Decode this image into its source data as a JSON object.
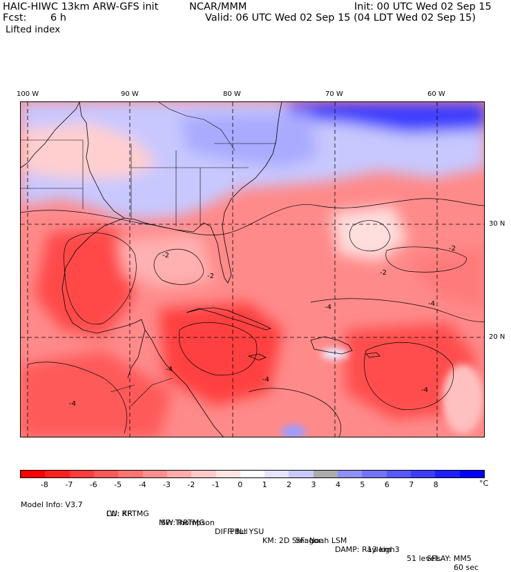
{
  "header": {
    "model": "HAIC-HIWC 13km ARW-GFS init",
    "org": "NCAR/MMM",
    "init": "Init: 00 UTC Wed 02 Sep 15",
    "fcst_label": "Fcst:",
    "fcst_value": "6 h",
    "valid": "Valid: 06 UTC Wed 02 Sep 15 (04 LDT Wed 02 Sep 15)",
    "field": "Lifted index"
  },
  "axes": {
    "lon_labels": [
      "100 W",
      "90 W",
      "80 W",
      "70 W",
      "60 W"
    ],
    "lat_labels": [
      "30 N",
      "20 N"
    ]
  },
  "colorbar": {
    "labels": [
      "-8",
      "-7",
      "-6",
      "-5",
      "-4",
      "-3",
      "-2",
      "-1",
      "0",
      "1",
      "2",
      "3",
      "4",
      "5",
      "6",
      "7",
      "8"
    ],
    "unit": "°C",
    "colors": [
      "#ff0000",
      "#ff1f1f",
      "#ff3c3c",
      "#ff5858",
      "#ff7373",
      "#ff8f8f",
      "#ffabab",
      "#ffc9c9",
      "#ffe4e4",
      "#ffffff",
      "#e4e4ff",
      "#c9c9ff",
      "#abababff",
      "#8f8fff",
      "#7373ff",
      "#5858ff",
      "#3c3cff",
      "#1f1fff",
      "#0000ff"
    ]
  },
  "contour_labels": [
    "-2",
    "-2",
    "-2",
    "-2",
    "-4",
    "-4",
    "-4",
    "-4",
    "-4",
    "-4"
  ],
  "footer": {
    "line1": [
      "Model Info: V3.7",
      "CU: KF",
      "MP: Thompson",
      "PBL: YSU",
      "SF: Noah LSM",
      "13 km",
      "51 levels",
      "60 sec"
    ],
    "line2": [
      "LW: RRTMG",
      "SW: RRTMG",
      "DIFF: full",
      "KM: 2D Smagor",
      "DAMP: Rayleigh3",
      "SFLAY: MM5"
    ]
  }
}
